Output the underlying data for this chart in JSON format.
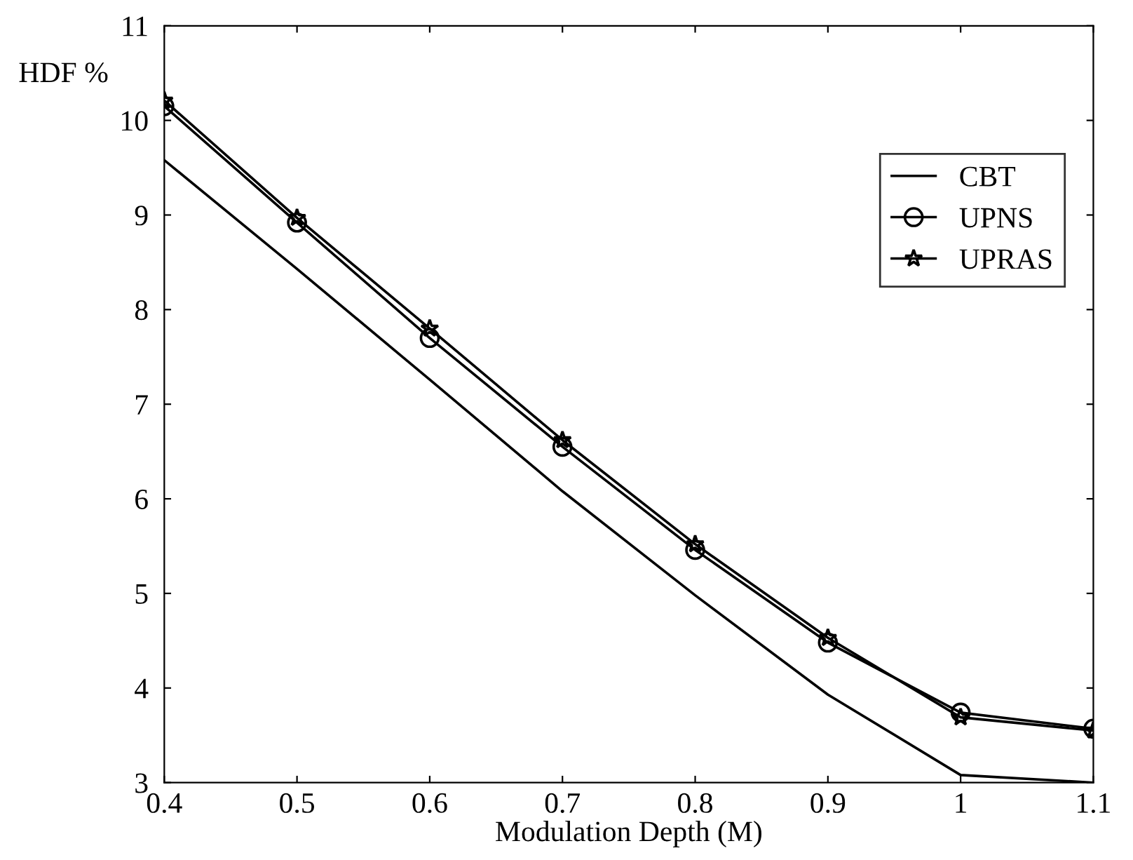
{
  "chart_data": {
    "type": "line",
    "xlabel": "Modulation Depth (M)",
    "ylabel": "HDF %",
    "x": [
      0.4,
      0.5,
      0.6,
      0.7,
      0.8,
      0.9,
      1.0,
      1.1
    ],
    "series": [
      {
        "name": "CBT",
        "color": "#000000",
        "marker": "none",
        "values": [
          9.58,
          8.43,
          7.26,
          6.08,
          4.98,
          3.93,
          3.08,
          3.0
        ]
      },
      {
        "name": "UPNS",
        "color": "#000000",
        "marker": "circle",
        "values": [
          10.15,
          8.92,
          7.7,
          6.55,
          5.46,
          4.48,
          3.74,
          3.57
        ]
      },
      {
        "name": "UPRAS",
        "color": "#000000",
        "marker": "star",
        "values": [
          10.21,
          8.97,
          7.8,
          6.62,
          5.52,
          4.53,
          3.69,
          3.55
        ]
      }
    ],
    "xlim": [
      0.4,
      1.1
    ],
    "ylim": [
      3,
      11
    ],
    "xticks": [
      0.4,
      0.5,
      0.6,
      0.7,
      0.8,
      0.9,
      {
        "value": 1.0,
        "label": "1"
      },
      1.1
    ],
    "yticks": [
      3,
      4,
      5,
      6,
      7,
      8,
      9,
      10,
      11
    ],
    "grid": false,
    "legend": "top right",
    "line_style": "solid"
  }
}
